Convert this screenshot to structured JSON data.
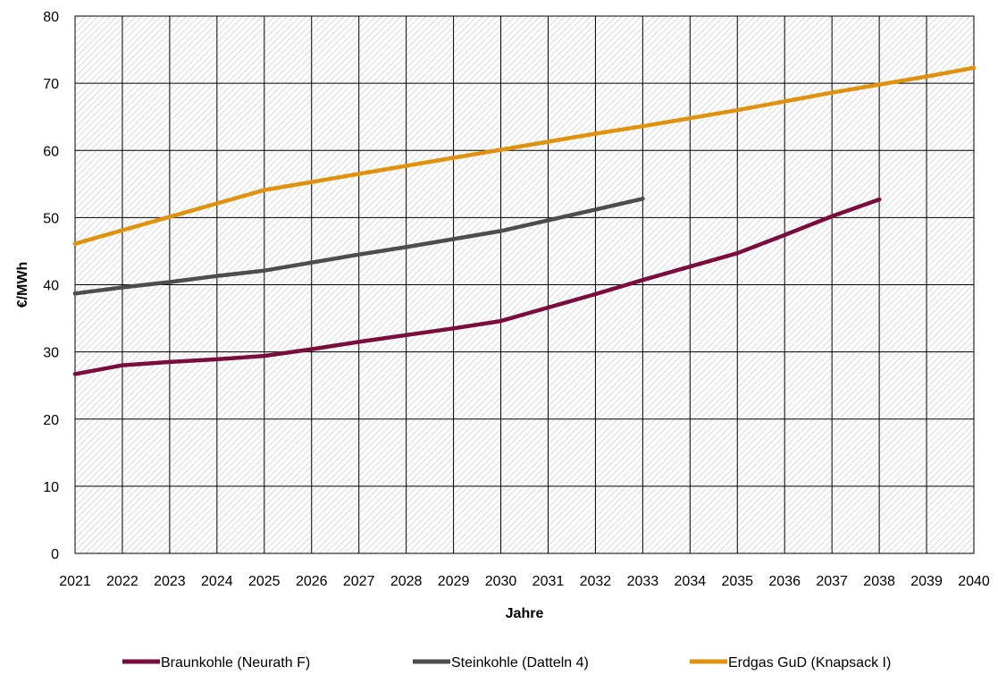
{
  "chart_data": {
    "type": "line",
    "title": "",
    "xlabel": "Jahre",
    "ylabel": "€/MWh",
    "x": [
      2021,
      2022,
      2023,
      2024,
      2025,
      2026,
      2027,
      2028,
      2029,
      2030,
      2031,
      2032,
      2033,
      2034,
      2035,
      2036,
      2037,
      2038,
      2039,
      2040
    ],
    "xlim": [
      2021,
      2040
    ],
    "ylim": [
      0,
      80
    ],
    "yticks": [
      0,
      10,
      20,
      30,
      40,
      50,
      60,
      70,
      80
    ],
    "grid": true,
    "plot_background": "diagonal hatch",
    "legend_position": "bottom",
    "series": [
      {
        "name": "Braunkohle (Neurath F)",
        "color": "#7b0c3e",
        "x": [
          2021,
          2022,
          2023,
          2024,
          2025,
          2026,
          2027,
          2028,
          2029,
          2030,
          2031,
          2032,
          2033,
          2034,
          2035,
          2036,
          2037,
          2038
        ],
        "values": [
          26.7,
          28.0,
          28.5,
          28.9,
          29.4,
          30.4,
          31.5,
          32.5,
          33.5,
          34.6,
          36.6,
          38.6,
          40.7,
          42.7,
          44.7,
          47.4,
          50.2,
          52.7
        ]
      },
      {
        "name": "Steinkohle (Datteln 4)",
        "color": "#4d4d4d",
        "x": [
          2021,
          2022,
          2023,
          2024,
          2025,
          2026,
          2027,
          2028,
          2029,
          2030,
          2031,
          2032,
          2033
        ],
        "values": [
          38.7,
          39.6,
          40.4,
          41.3,
          42.1,
          43.3,
          44.5,
          45.6,
          46.8,
          48.0,
          49.6,
          51.2,
          52.8
        ]
      },
      {
        "name": "Erdgas GuD (Knapsack I)",
        "color": "#e0920f",
        "x": [
          2021,
          2022,
          2023,
          2024,
          2025,
          2026,
          2027,
          2028,
          2029,
          2030,
          2031,
          2032,
          2033,
          2034,
          2035,
          2036,
          2037,
          2038,
          2039,
          2040
        ],
        "values": [
          46.1,
          48.1,
          50.1,
          52.1,
          54.1,
          55.3,
          56.5,
          57.7,
          58.9,
          60.1,
          61.3,
          62.5,
          63.6,
          64.8,
          66.0,
          67.3,
          68.6,
          69.8,
          71.0,
          72.3
        ]
      }
    ]
  }
}
